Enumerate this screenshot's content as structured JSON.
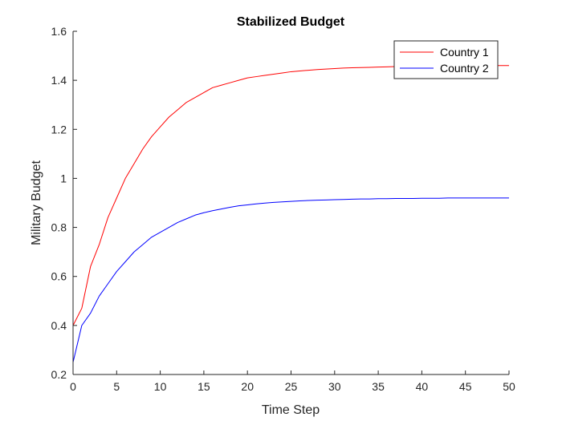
{
  "chart_data": {
    "type": "line",
    "title": "Stabilized Budget",
    "xlabel": "Time Step",
    "ylabel": "Military Budget",
    "xlim": [
      0,
      50
    ],
    "ylim": [
      0.2,
      1.6
    ],
    "xticks": [
      0,
      5,
      10,
      15,
      20,
      25,
      30,
      35,
      40,
      45,
      50
    ],
    "yticks": [
      0.2,
      0.4,
      0.6,
      0.8,
      1.0,
      1.2,
      1.4,
      1.6
    ],
    "xtick_labels": [
      "0",
      "5",
      "10",
      "15",
      "20",
      "25",
      "30",
      "35",
      "40",
      "45",
      "50"
    ],
    "ytick_labels": [
      "0.2",
      "0.4",
      "0.6",
      "0.8",
      "1",
      "1.2",
      "1.4",
      "1.6"
    ],
    "grid": false,
    "legend_position": "top-right",
    "x": [
      0,
      1,
      2,
      3,
      4,
      5,
      6,
      7,
      8,
      9,
      10,
      11,
      12,
      13,
      14,
      15,
      16,
      17,
      18,
      19,
      20,
      21,
      22,
      23,
      24,
      25,
      26,
      27,
      28,
      29,
      30,
      31,
      32,
      33,
      34,
      35,
      36,
      37,
      38,
      39,
      40,
      41,
      42,
      43,
      44,
      45,
      46,
      47,
      48,
      49,
      50
    ],
    "series": [
      {
        "name": "Country 1",
        "color": "#ff0000",
        "values": [
          0.4,
          0.47,
          0.64,
          0.73,
          0.84,
          0.92,
          1.0,
          1.06,
          1.12,
          1.17,
          1.21,
          1.25,
          1.28,
          1.31,
          1.33,
          1.35,
          1.37,
          1.38,
          1.39,
          1.4,
          1.41,
          1.415,
          1.42,
          1.425,
          1.43,
          1.435,
          1.438,
          1.441,
          1.444,
          1.446,
          1.448,
          1.45,
          1.451,
          1.452,
          1.453,
          1.454,
          1.455,
          1.456,
          1.457,
          1.457,
          1.458,
          1.458,
          1.459,
          1.459,
          1.459,
          1.46,
          1.46,
          1.46,
          1.46,
          1.46,
          1.46
        ]
      },
      {
        "name": "Country 2",
        "color": "#0000ff",
        "values": [
          0.25,
          0.4,
          0.45,
          0.52,
          0.57,
          0.62,
          0.66,
          0.7,
          0.73,
          0.76,
          0.78,
          0.8,
          0.82,
          0.835,
          0.85,
          0.86,
          0.868,
          0.875,
          0.882,
          0.888,
          0.892,
          0.896,
          0.899,
          0.902,
          0.904,
          0.906,
          0.908,
          0.91,
          0.911,
          0.912,
          0.913,
          0.914,
          0.915,
          0.916,
          0.916,
          0.917,
          0.917,
          0.918,
          0.918,
          0.918,
          0.919,
          0.919,
          0.919,
          0.92,
          0.92,
          0.92,
          0.92,
          0.92,
          0.92,
          0.92,
          0.92
        ]
      }
    ]
  }
}
